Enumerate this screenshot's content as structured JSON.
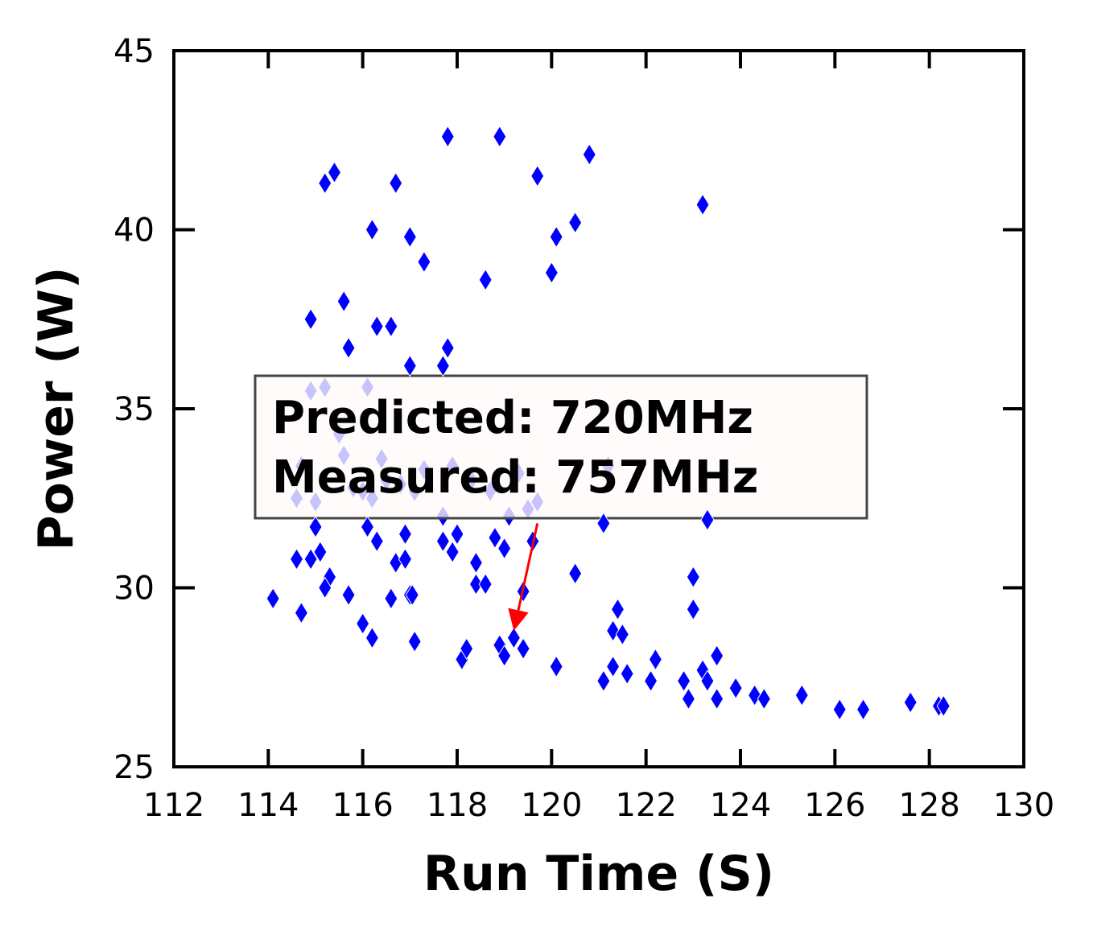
{
  "chart_data": {
    "type": "scatter",
    "xlabel": "Run Time (S)",
    "ylabel": "Power (W)",
    "xlim": [
      112,
      130
    ],
    "ylim": [
      25,
      45
    ],
    "x_ticks": [
      "112",
      "114",
      "116",
      "118",
      "120",
      "122",
      "124",
      "126",
      "128",
      "130"
    ],
    "y_ticks": [
      "25",
      "30",
      "35",
      "40",
      "45"
    ],
    "grid": false,
    "marker": "diamond",
    "marker_color": "#0000ff",
    "annotation": {
      "lines": [
        "Predicted: 720MHz",
        "Measured: 757MHz"
      ],
      "arrow_from": [
        119.7,
        31.8
      ],
      "arrow_to": [
        119.2,
        28.8
      ],
      "arrow_color": "#ff0000",
      "box_fill": "#fffafa",
      "box_edge": "#444444"
    },
    "series": [
      {
        "points": [
          [
            114.1,
            29.7
          ],
          [
            114.6,
            30.8
          ],
          [
            114.7,
            29.3
          ],
          [
            114.9,
            30.8
          ],
          [
            114.9,
            37.5
          ],
          [
            115.0,
            31.7
          ],
          [
            115.1,
            31.0
          ],
          [
            115.2,
            41.3
          ],
          [
            115.3,
            30.3
          ],
          [
            115.2,
            30.0
          ],
          [
            115.4,
            41.6
          ],
          [
            115.6,
            38.0
          ],
          [
            115.7,
            36.7
          ],
          [
            115.7,
            29.8
          ],
          [
            116.0,
            29.0
          ],
          [
            116.1,
            31.7
          ],
          [
            116.2,
            28.6
          ],
          [
            116.2,
            40.0
          ],
          [
            116.3,
            37.3
          ],
          [
            116.3,
            31.3
          ],
          [
            116.6,
            37.3
          ],
          [
            116.6,
            29.7
          ],
          [
            116.7,
            41.3
          ],
          [
            116.7,
            30.7
          ],
          [
            116.9,
            31.5
          ],
          [
            116.9,
            30.8
          ],
          [
            117.0,
            36.2
          ],
          [
            117.0,
            29.8
          ],
          [
            117.0,
            39.8
          ],
          [
            117.05,
            29.8
          ],
          [
            117.1,
            28.5
          ],
          [
            117.3,
            39.1
          ],
          [
            117.7,
            36.2
          ],
          [
            117.7,
            31.3
          ],
          [
            117.8,
            42.6
          ],
          [
            117.8,
            36.7
          ],
          [
            117.9,
            31.0
          ],
          [
            118.0,
            31.5
          ],
          [
            118.1,
            28.0
          ],
          [
            118.2,
            28.3
          ],
          [
            118.4,
            30.7
          ],
          [
            118.4,
            30.1
          ],
          [
            118.6,
            30.1
          ],
          [
            118.6,
            38.6
          ],
          [
            118.8,
            31.4
          ],
          [
            118.9,
            42.6
          ],
          [
            118.9,
            28.4
          ],
          [
            119.0,
            28.1
          ],
          [
            119.0,
            31.1
          ],
          [
            119.2,
            28.6
          ],
          [
            119.4,
            28.3
          ],
          [
            119.4,
            29.9
          ],
          [
            119.6,
            31.3
          ],
          [
            119.7,
            41.5
          ],
          [
            120.0,
            38.8
          ],
          [
            120.1,
            39.8
          ],
          [
            120.1,
            27.8
          ],
          [
            120.5,
            40.2
          ],
          [
            120.5,
            30.4
          ],
          [
            120.8,
            42.1
          ],
          [
            121.1,
            31.8
          ],
          [
            121.1,
            27.4
          ],
          [
            121.3,
            27.8
          ],
          [
            121.3,
            28.8
          ],
          [
            121.4,
            29.4
          ],
          [
            121.5,
            28.7
          ],
          [
            121.6,
            27.6
          ],
          [
            122.1,
            27.4
          ],
          [
            122.2,
            28.0
          ],
          [
            122.8,
            27.4
          ],
          [
            122.9,
            26.9
          ],
          [
            123.0,
            30.3
          ],
          [
            123.0,
            29.4
          ],
          [
            123.2,
            40.7
          ],
          [
            123.2,
            27.7
          ],
          [
            123.3,
            27.4
          ],
          [
            123.3,
            31.9
          ],
          [
            123.5,
            28.1
          ],
          [
            123.5,
            26.9
          ],
          [
            123.9,
            27.2
          ],
          [
            124.3,
            27.0
          ],
          [
            124.5,
            26.9
          ],
          [
            125.3,
            27.0
          ],
          [
            126.1,
            26.6
          ],
          [
            126.6,
            26.6
          ],
          [
            127.6,
            26.8
          ],
          [
            128.2,
            26.7
          ],
          [
            128.3,
            26.7
          ]
        ]
      },
      {
        "behind_annotation": true,
        "points": [
          [
            114.6,
            32.5
          ],
          [
            114.7,
            33.4
          ],
          [
            114.9,
            35.5
          ],
          [
            115.0,
            32.4
          ],
          [
            115.2,
            35.6
          ],
          [
            115.5,
            34.3
          ],
          [
            115.6,
            33.7
          ],
          [
            115.8,
            32.8
          ],
          [
            116.0,
            32.7
          ],
          [
            116.1,
            35.6
          ],
          [
            116.2,
            32.5
          ],
          [
            116.4,
            33.6
          ],
          [
            116.5,
            33.0
          ],
          [
            116.8,
            32.9
          ],
          [
            117.1,
            32.7
          ],
          [
            117.3,
            33.3
          ],
          [
            117.7,
            32.0
          ],
          [
            117.9,
            33.4
          ],
          [
            118.3,
            33.0
          ],
          [
            118.7,
            32.7
          ],
          [
            119.1,
            32.0
          ],
          [
            119.3,
            33.2
          ],
          [
            119.5,
            32.2
          ],
          [
            119.7,
            32.4
          ],
          [
            121.2,
            33.4
          ]
        ]
      }
    ]
  }
}
